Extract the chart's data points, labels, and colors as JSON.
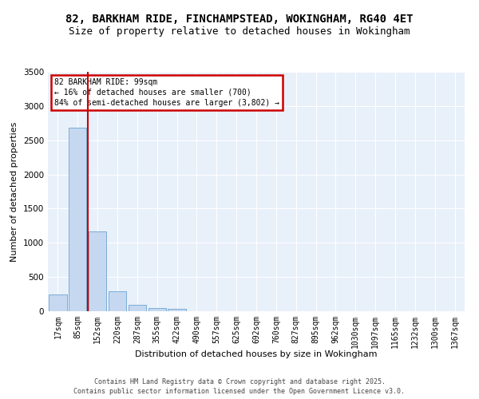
{
  "title": "82, BARKHAM RIDE, FINCHAMPSTEAD, WOKINGHAM, RG40 4ET",
  "subtitle": "Size of property relative to detached houses in Wokingham",
  "xlabel": "Distribution of detached houses by size in Wokingham",
  "ylabel": "Number of detached properties",
  "bins": [
    "17sqm",
    "85sqm",
    "152sqm",
    "220sqm",
    "287sqm",
    "355sqm",
    "422sqm",
    "490sqm",
    "557sqm",
    "625sqm",
    "692sqm",
    "760sqm",
    "827sqm",
    "895sqm",
    "962sqm",
    "1030sqm",
    "1097sqm",
    "1165sqm",
    "1232sqm",
    "1300sqm",
    "1367sqm"
  ],
  "values": [
    250,
    2680,
    1170,
    290,
    90,
    50,
    35,
    0,
    0,
    0,
    0,
    0,
    0,
    0,
    0,
    0,
    0,
    0,
    0,
    0,
    0
  ],
  "bar_color": "#c5d8f0",
  "bar_edge_color": "#7badd6",
  "ylim": [
    0,
    3500
  ],
  "yticks": [
    0,
    500,
    1000,
    1500,
    2000,
    2500,
    3000,
    3500
  ],
  "annotation_text": "82 BARKHAM RIDE: 99sqm\n← 16% of detached houses are smaller (700)\n84% of semi-detached houses are larger (3,802) →",
  "annotation_box_color": "#cc0000",
  "bg_color": "#e8f0fa",
  "grid_color": "#ffffff",
  "footer_line1": "Contains HM Land Registry data © Crown copyright and database right 2025.",
  "footer_line2": "Contains public sector information licensed under the Open Government Licence v3.0.",
  "title_fontsize": 10,
  "subtitle_fontsize": 9,
  "tick_fontsize": 7,
  "ylabel_fontsize": 8,
  "xlabel_fontsize": 8,
  "footer_fontsize": 6,
  "annot_fontsize": 7,
  "red_line_x": 1.5
}
